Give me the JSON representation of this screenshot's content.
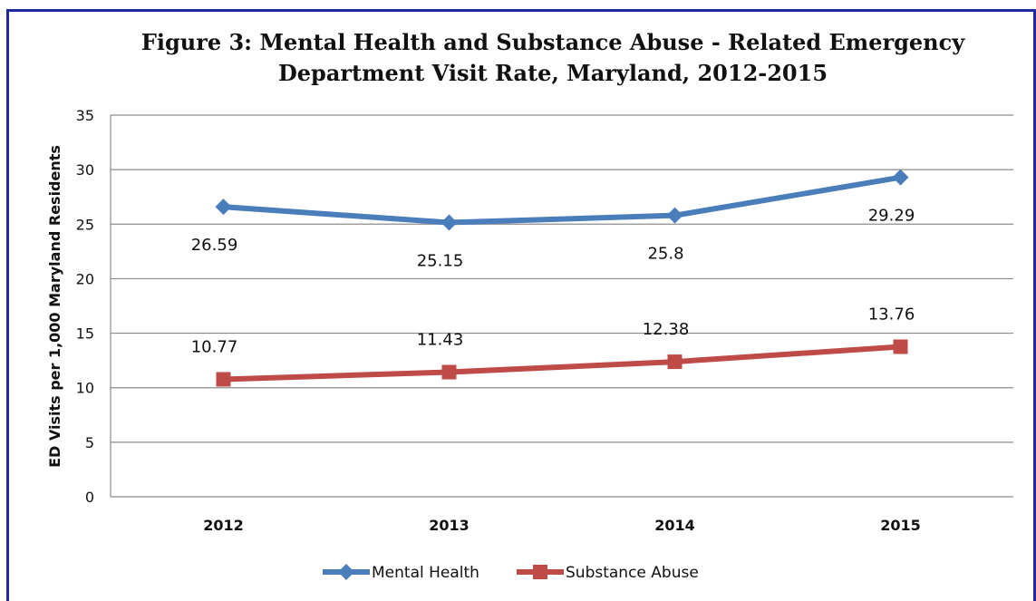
{
  "chart_data": {
    "type": "line",
    "title_line1": "Figure 3: Mental Health and Substance Abuse - Related Emergency",
    "title_line2": "Department Visit Rate, Maryland, 2012-2015",
    "xlabel": "",
    "ylabel": "ED Visits per 1,000 Maryland Residents",
    "categories": [
      "2012",
      "2013",
      "2014",
      "2015"
    ],
    "ylim": [
      0,
      35
    ],
    "yticks": [
      0,
      5,
      10,
      15,
      20,
      25,
      30,
      35
    ],
    "grid": true,
    "legend_position": "bottom",
    "series": [
      {
        "name": "Mental Health",
        "values": [
          26.59,
          25.15,
          25.8,
          29.29
        ],
        "labels": [
          "26.59",
          "25.15",
          "25.8",
          "29.29"
        ],
        "color": "#4a7ebb",
        "marker": "diamond",
        "label_position": "below"
      },
      {
        "name": "Substance Abuse",
        "values": [
          10.77,
          11.43,
          12.38,
          13.76
        ],
        "labels": [
          "10.77",
          "11.43",
          "12.38",
          "13.76"
        ],
        "color": "#be4b48",
        "marker": "square",
        "label_position": "above"
      }
    ]
  },
  "colors": {
    "border": "#1f2a9e",
    "gridline": "#8c8c8c",
    "text": "#111111"
  }
}
